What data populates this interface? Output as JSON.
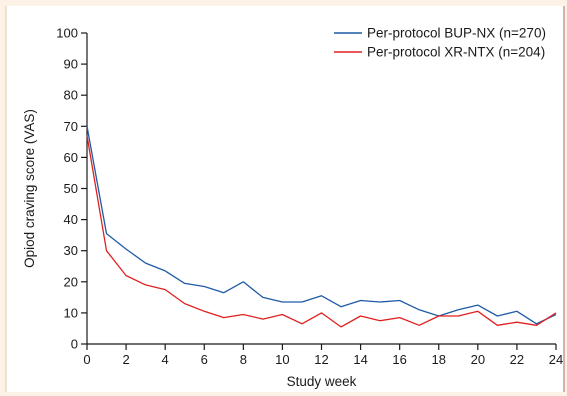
{
  "chart_data": {
    "type": "line",
    "xlabel": "Study week",
    "ylabel": "Opiod craving score (VAS)",
    "xlim": [
      0,
      24
    ],
    "ylim": [
      0,
      100
    ],
    "xticks": [
      0,
      2,
      4,
      6,
      8,
      10,
      12,
      14,
      16,
      18,
      20,
      22,
      24
    ],
    "yticks": [
      0,
      10,
      20,
      30,
      40,
      50,
      60,
      70,
      80,
      90,
      100
    ],
    "grid": false,
    "legend_position": "top-right",
    "series": [
      {
        "name": "Per-protocol BUP-NX (n=270)",
        "color": "#1f5aa6",
        "x": [
          0,
          1,
          2,
          3,
          4,
          5,
          6,
          7,
          8,
          9,
          10,
          11,
          12,
          13,
          14,
          15,
          16,
          17,
          18,
          19,
          20,
          21,
          22,
          23,
          24
        ],
        "y": [
          70,
          35.5,
          30.5,
          26,
          23.5,
          19.5,
          18.5,
          16.5,
          20,
          15,
          13.5,
          13.5,
          15.5,
          12,
          14,
          13.5,
          14,
          11,
          9,
          11,
          12.5,
          9,
          10.5,
          6.5,
          9.5
        ]
      },
      {
        "name": "Per-protocol XR-NTX (n=204)",
        "color": "#e02020",
        "x": [
          0,
          1,
          2,
          3,
          4,
          5,
          6,
          7,
          8,
          9,
          10,
          11,
          12,
          13,
          14,
          15,
          16,
          17,
          18,
          19,
          20,
          21,
          22,
          23,
          24
        ],
        "y": [
          67,
          30,
          22,
          19,
          17.5,
          13,
          10.5,
          8.5,
          9.5,
          8,
          9.5,
          6.5,
          10,
          5.5,
          9,
          7.5,
          8.5,
          6,
          9,
          9,
          10.5,
          6,
          7,
          6,
          10
        ]
      }
    ]
  }
}
